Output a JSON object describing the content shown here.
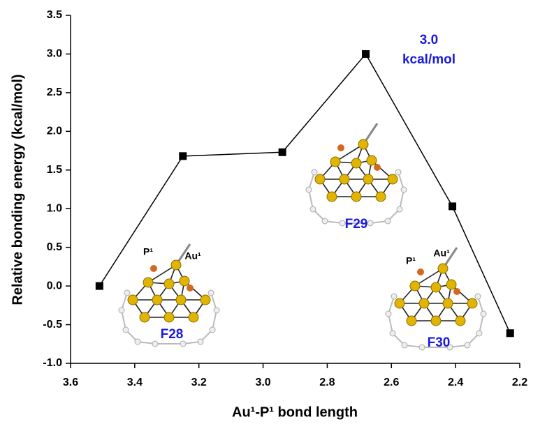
{
  "chart_data": {
    "type": "line",
    "x_label": "Au¹-P¹ bond length",
    "y_label": "Relative bonding energy (kcal/mol)",
    "x": [
      3.51,
      3.25,
      2.94,
      2.68,
      2.41,
      2.23
    ],
    "series": [
      {
        "color": "#000000",
        "values": [
          0.0,
          1.68,
          1.73,
          3.0,
          1.03,
          -0.61
        ]
      }
    ],
    "xlim": [
      3.6,
      2.2
    ],
    "xticks": [
      3.6,
      3.4,
      3.2,
      {
        "value": 3,
        "label": "3.0"
      },
      2.8,
      2.6,
      2.4,
      2.2
    ],
    "ylim": [
      -1,
      3.5
    ],
    "yticks": [
      {
        "value": -1,
        "label": "-1.0"
      },
      -0.5,
      {
        "value": 0,
        "label": "0.0"
      },
      0.5,
      {
        "value": 1,
        "label": "1.0"
      },
      1.5,
      {
        "value": 2,
        "label": "2.0"
      },
      2.5,
      {
        "value": 3,
        "label": "3.0"
      },
      3.5
    ],
    "annotations": [
      {
        "text": "3.0",
        "color": "#1a1adb"
      },
      {
        "text": "kcal/mol",
        "color": "#1a1adb"
      },
      {
        "text": "F28",
        "color": "#1a1adb"
      },
      {
        "text": "F29",
        "color": "#1a1adb"
      },
      {
        "text": "F30",
        "color": "#1a1adb"
      },
      {
        "text": "P¹",
        "color": "#000000"
      },
      {
        "text": "Au¹",
        "color": "#000000"
      },
      {
        "text": "P¹",
        "color": "#000000"
      },
      {
        "text": "Au¹",
        "color": "#000000"
      }
    ]
  }
}
